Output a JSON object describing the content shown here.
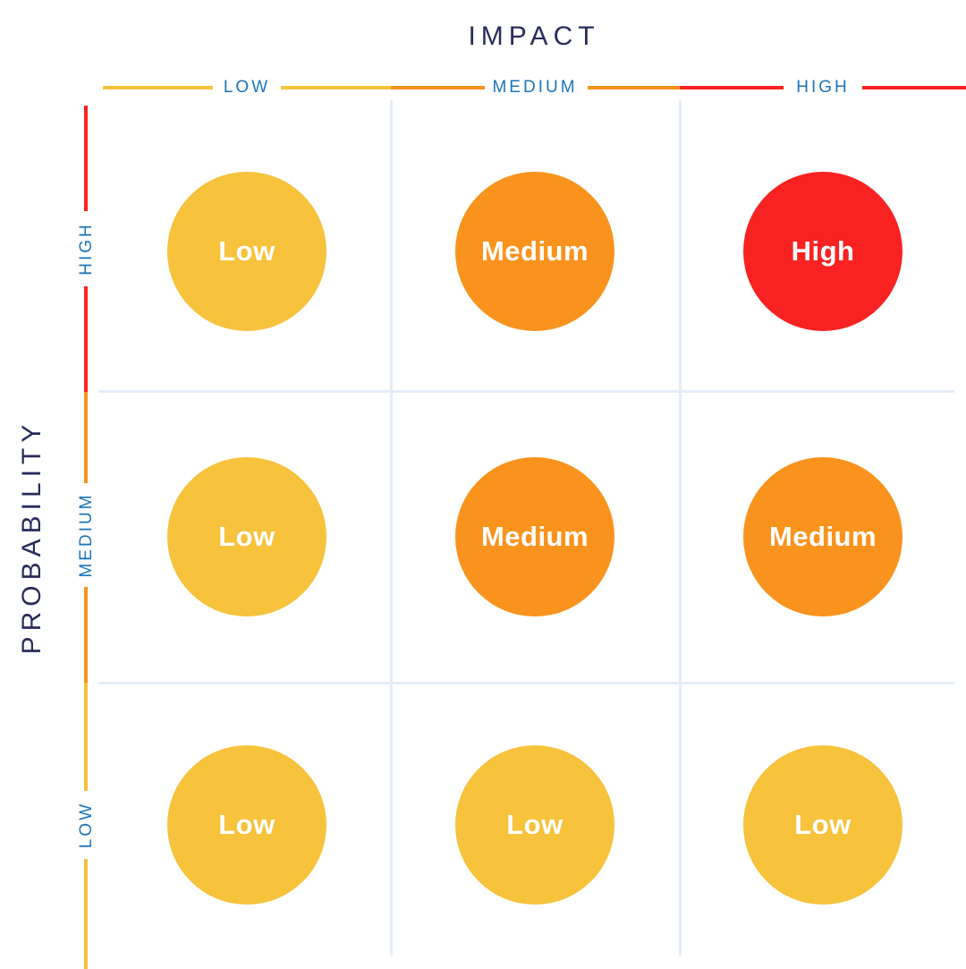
{
  "title": "IMPACT",
  "y_axis_title": "PROBABILITY",
  "impact_levels": [
    {
      "label": "LOW",
      "color": "#F7C23C"
    },
    {
      "label": "MEDIUM",
      "color": "#F9931D"
    },
    {
      "label": "HIGH",
      "color": "#F92222"
    }
  ],
  "probability_levels": [
    {
      "label": "HIGH",
      "color": "#F92222"
    },
    {
      "label": "MEDIUM",
      "color": "#F9931D"
    },
    {
      "label": "LOW",
      "color": "#F7C23C"
    }
  ],
  "risk_colors": {
    "Low": "#F7C23C",
    "Medium": "#F9931D",
    "High": "#F92222"
  },
  "colors": {
    "label_blue": "#1B75BC",
    "navy": "#282C5B",
    "grid": "#E4EDF6",
    "bubble_text": "#FFFFFF",
    "background": "#FFFFFF"
  },
  "chart_data": {
    "type": "heatmap",
    "title": "IMPACT",
    "xlabel": "IMPACT",
    "ylabel": "PROBABILITY",
    "x_categories": [
      "LOW",
      "MEDIUM",
      "HIGH"
    ],
    "y_categories": [
      "HIGH",
      "MEDIUM",
      "LOW"
    ],
    "cells": [
      [
        "Low",
        "Medium",
        "High"
      ],
      [
        "Low",
        "Medium",
        "Medium"
      ],
      [
        "Low",
        "Low",
        "Low"
      ]
    ],
    "grid": true,
    "legend": false
  }
}
